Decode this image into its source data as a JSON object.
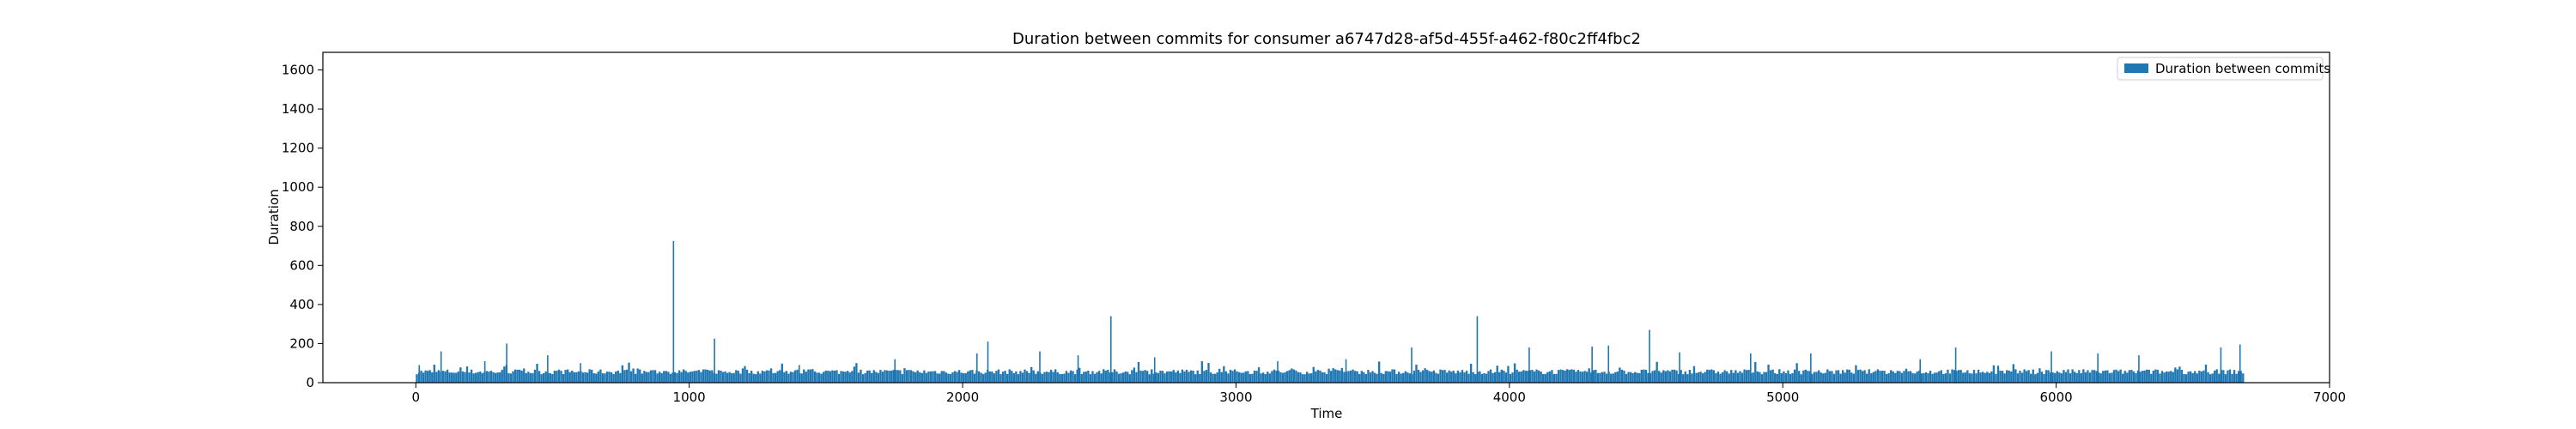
{
  "chart_data": {
    "type": "bar",
    "title": "Duration between commits for consumer a6747d28-af5d-455f-a462-f80c2ff4fbc2",
    "xlabel": "Time",
    "ylabel": "Duration",
    "xlim": [
      -340,
      7000
    ],
    "ylim": [
      0,
      1690
    ],
    "xticks": [
      0,
      1000,
      2000,
      3000,
      4000,
      5000,
      6000,
      7000
    ],
    "yticks": [
      0,
      200,
      400,
      600,
      800,
      1000,
      1200,
      1400,
      1600
    ],
    "grid": false,
    "legend": {
      "position": "top-right"
    },
    "series": [
      {
        "name": "Duration between commits",
        "color": "#1f77b4",
        "baseline": 55,
        "x_start": 0,
        "x_end": 6680,
        "bar_width": 1,
        "peaks": [
          {
            "x": 10,
            "y": 90
          },
          {
            "x": 90,
            "y": 160
          },
          {
            "x": 250,
            "y": 110
          },
          {
            "x": 330,
            "y": 200
          },
          {
            "x": 480,
            "y": 140
          },
          {
            "x": 600,
            "y": 100
          },
          {
            "x": 940,
            "y": 725
          },
          {
            "x": 1090,
            "y": 225
          },
          {
            "x": 1400,
            "y": 90
          },
          {
            "x": 1750,
            "y": 120
          },
          {
            "x": 2050,
            "y": 150
          },
          {
            "x": 2090,
            "y": 210
          },
          {
            "x": 2280,
            "y": 160
          },
          {
            "x": 2420,
            "y": 140
          },
          {
            "x": 2540,
            "y": 340
          },
          {
            "x": 2700,
            "y": 130
          },
          {
            "x": 3150,
            "y": 110
          },
          {
            "x": 3400,
            "y": 120
          },
          {
            "x": 3640,
            "y": 180
          },
          {
            "x": 3880,
            "y": 340
          },
          {
            "x": 4070,
            "y": 180
          },
          {
            "x": 4300,
            "y": 185
          },
          {
            "x": 4360,
            "y": 190
          },
          {
            "x": 4510,
            "y": 270
          },
          {
            "x": 4620,
            "y": 155
          },
          {
            "x": 4880,
            "y": 150
          },
          {
            "x": 5100,
            "y": 150
          },
          {
            "x": 5500,
            "y": 120
          },
          {
            "x": 5630,
            "y": 180
          },
          {
            "x": 5980,
            "y": 160
          },
          {
            "x": 6150,
            "y": 150
          },
          {
            "x": 6300,
            "y": 140
          },
          {
            "x": 6600,
            "y": 180
          },
          {
            "x": 6670,
            "y": 195
          }
        ]
      }
    ]
  }
}
